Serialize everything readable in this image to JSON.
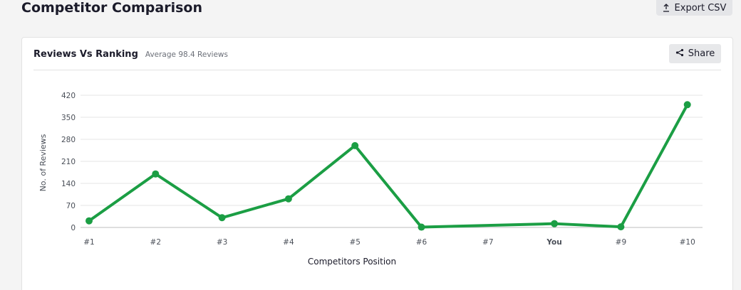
{
  "page": {
    "title": "Competitor Comparison",
    "export_label": "Export CSV",
    "export_icon": "upload-icon"
  },
  "card": {
    "title": "Reviews Vs Ranking",
    "subtitle": "Average 98.4 Reviews",
    "share_label": "Share",
    "share_icon": "share-icon"
  },
  "colors": {
    "series": "#1b9e44",
    "highlight_tick": "#3b2fc9",
    "grid": "#e6e6e6"
  },
  "chart_data": {
    "type": "line",
    "categories": [
      "#1",
      "#2",
      "#3",
      "#4",
      "#5",
      "#6",
      "#7",
      "You",
      "#9",
      "#10"
    ],
    "highlight_category": "You",
    "series": [
      {
        "x": [
          "#1",
          "#2",
          "#3",
          "#4",
          "#5",
          "#6",
          "You",
          "#9",
          "#10"
        ],
        "values": [
          21,
          170,
          31,
          91,
          260,
          1,
          12,
          2,
          390
        ]
      }
    ],
    "xlabel": "Competitors Position",
    "ylabel": "No. of Reviews",
    "yticks": [
      0,
      70,
      140,
      210,
      280,
      350,
      420
    ],
    "ylim": [
      0,
      420
    ],
    "grid": true
  }
}
